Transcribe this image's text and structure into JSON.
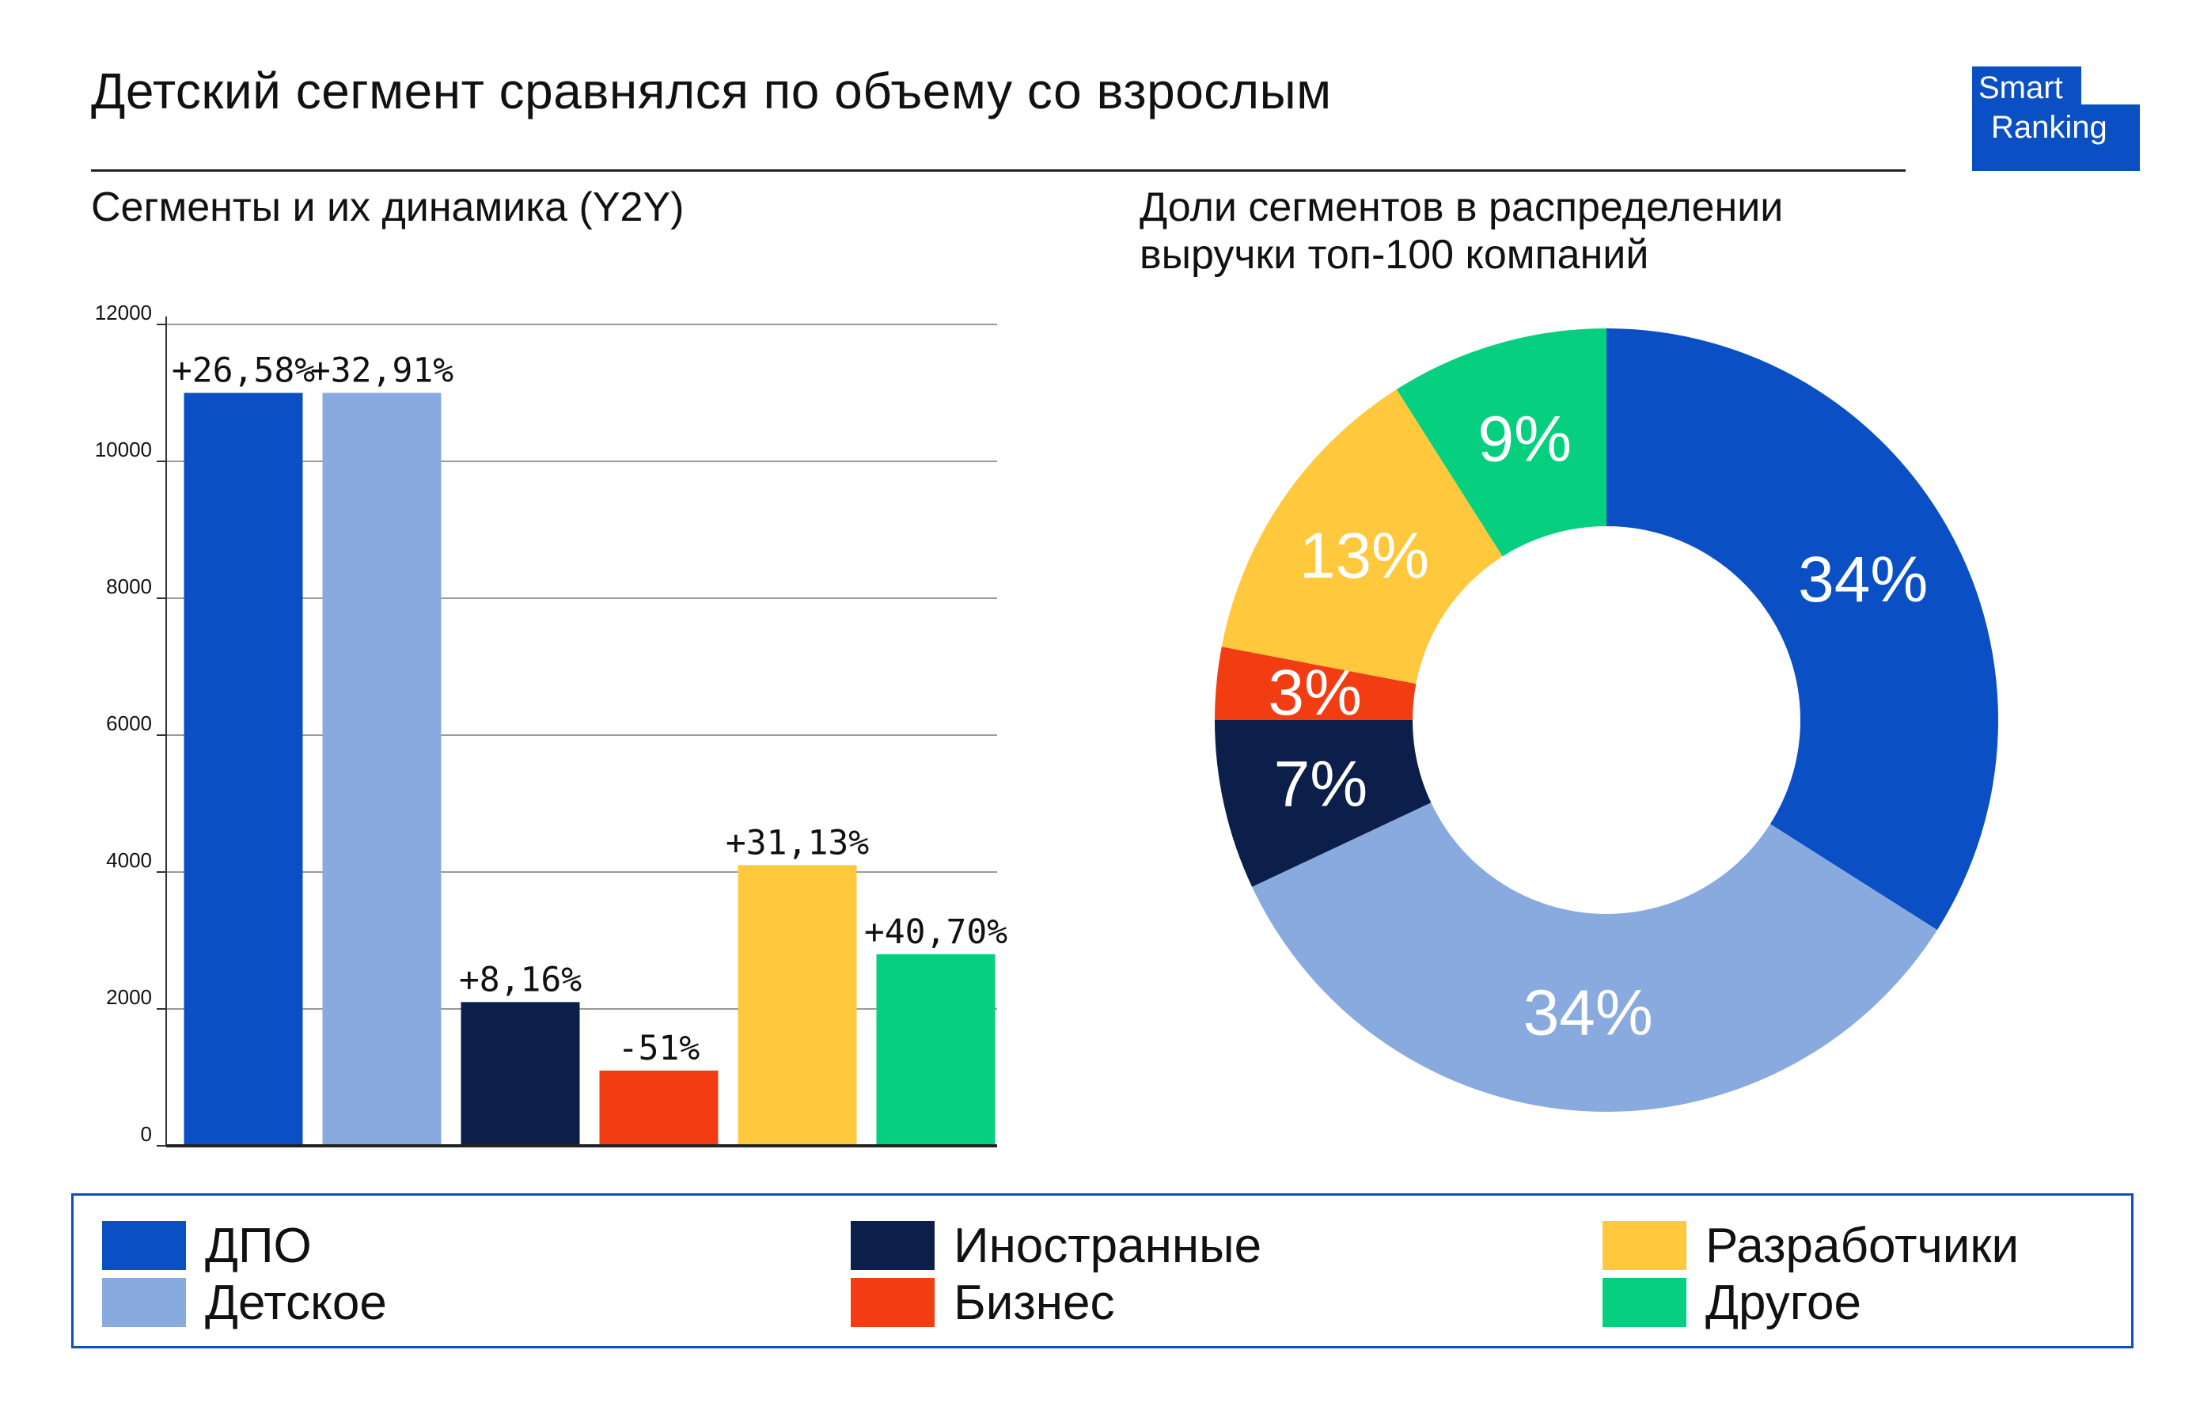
{
  "header": {
    "title": "Детский сегмент сравнялся по объему со взрослым",
    "logo_line1": "Smart",
    "logo_line2": "Ranking",
    "logo_color": "#0a4fc4"
  },
  "chart_data": [
    {
      "type": "bar",
      "title": "Сегменты и их динамика (Y2Y)",
      "categories": [
        "ДПО",
        "Детское",
        "Иностранные",
        "Бизнес",
        "Разработчики",
        "Другое"
      ],
      "values": [
        11000,
        11000,
        2100,
        1100,
        4100,
        2800
      ],
      "data_labels": [
        "+26,58%",
        "+32,91%",
        "+8,16%",
        "-51%",
        "+31,13%",
        "+40,70%"
      ],
      "colors": [
        "#0a4fc4",
        "#88aadf",
        "#0b1f4a",
        "#f23c12",
        "#ffc83d",
        "#06d07f"
      ],
      "ylim": [
        0,
        12000
      ],
      "yticks": [
        0,
        2000,
        4000,
        6000,
        8000,
        10000,
        12000
      ],
      "grid": true,
      "legend": "bottom"
    },
    {
      "type": "pie",
      "title": "Доли сегментов в распределении\nвыручки топ-100 компаний",
      "donut": true,
      "categories": [
        "ДПО",
        "Детское",
        "Иностранные",
        "Бизнес",
        "Разработчики",
        "Другое"
      ],
      "values": [
        34,
        34,
        7,
        3,
        13,
        9
      ],
      "data_labels": [
        "34%",
        "34%",
        "7%",
        "3%",
        "13%",
        "9%"
      ],
      "colors": [
        "#0a4fc4",
        "#88aadf",
        "#0b1f4a",
        "#f23c12",
        "#ffc83d",
        "#06d07f"
      ],
      "start": "top",
      "direction": "clockwise",
      "legend": "bottom"
    }
  ],
  "legend": {
    "items": [
      {
        "label": "ДПО",
        "color": "#0a4fc4"
      },
      {
        "label": "Детское",
        "color": "#88aadf"
      },
      {
        "label": "Иностранные",
        "color": "#0b1f4a"
      },
      {
        "label": "Бизнес",
        "color": "#f23c12"
      },
      {
        "label": "Разработчики",
        "color": "#ffc83d"
      },
      {
        "label": "Другое",
        "color": "#06d07f"
      }
    ]
  }
}
